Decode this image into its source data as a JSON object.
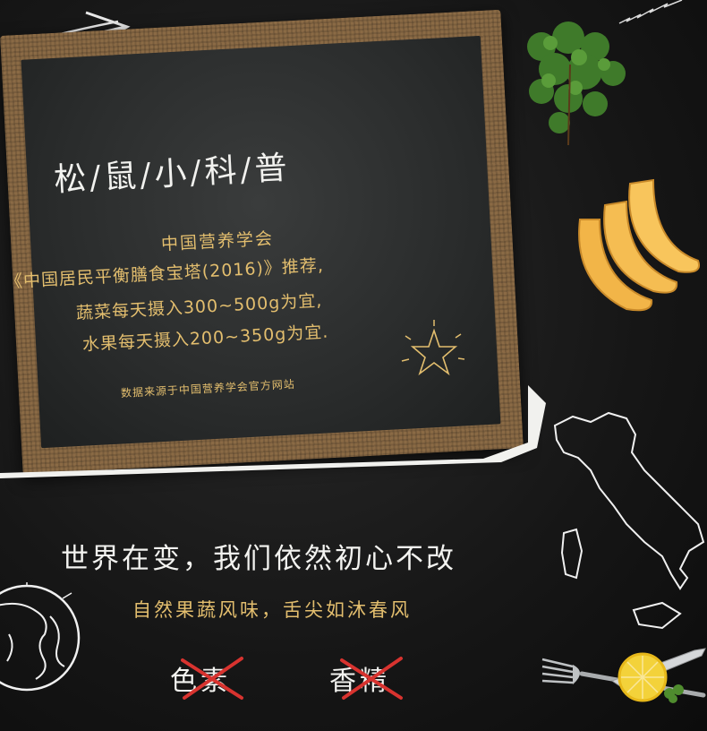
{
  "board": {
    "title": "松/鼠/小/科/普",
    "org": "中国营养学会",
    "line1": "《中国居民平衡膳食宝塔(2016)》推荐,",
    "line2": "蔬菜每天摄入300~500g为宜,",
    "line3": "水果每天摄入200~350g为宜.",
    "source": "数据来源于中国营养学会官方网站"
  },
  "slogan": "世界在变，我们依然初心不改",
  "sub_slogan": "自然果蔬风味，舌尖如沐春风",
  "crossed_items": [
    "色素",
    "香精"
  ],
  "colors": {
    "chalk_white": "#f2f2ef",
    "gold": "#e3be6e",
    "cross_red": "#d8332f",
    "background": "#161616",
    "burlap": "#8a6a45"
  },
  "icons": [
    "arrow-icon",
    "herb-sprig-icon",
    "peach-slices-icon",
    "italy-map-icon",
    "globe-icon",
    "fork-icon",
    "knife-icon",
    "lemon-slice-icon",
    "star-doodle-icon"
  ]
}
